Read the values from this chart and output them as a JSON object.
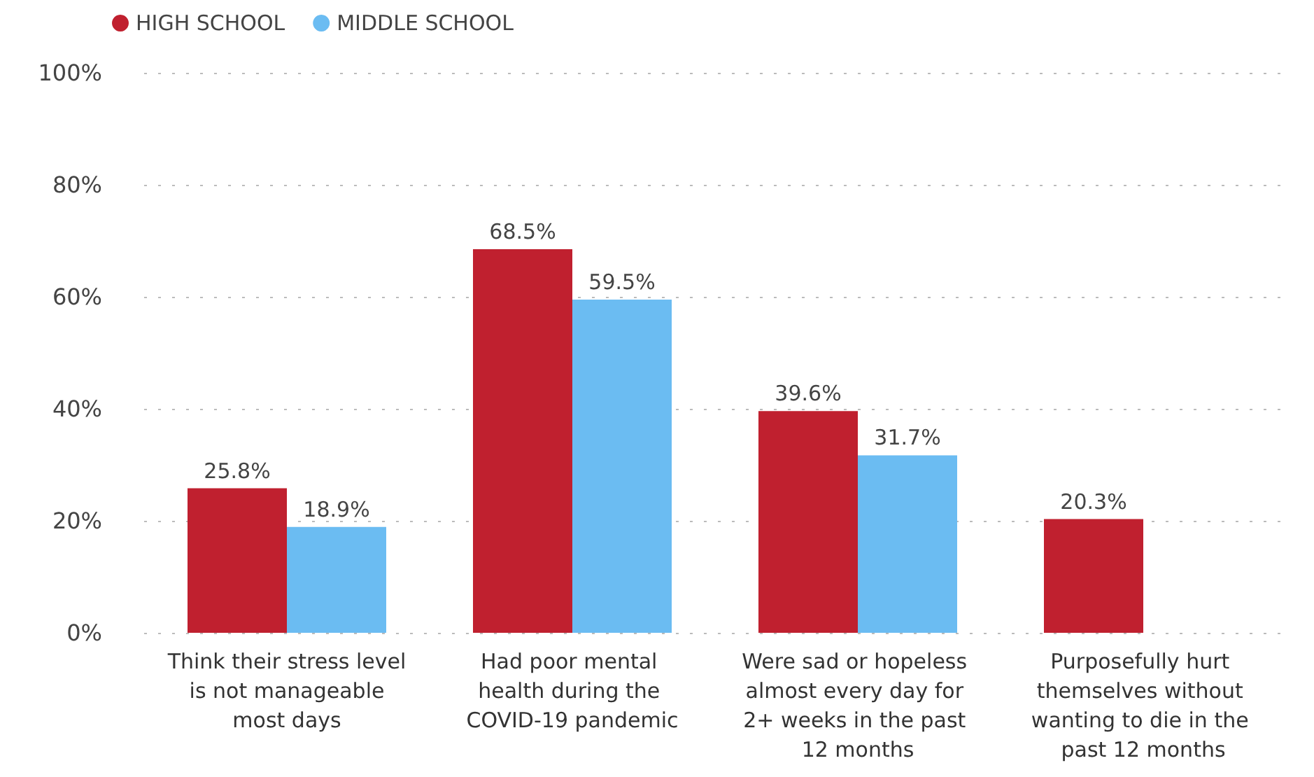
{
  "chart_data": {
    "type": "bar",
    "categories": [
      "Think their stress level is not manageable most days",
      "Had poor mental health during the COVID-19 pandemic",
      "Were sad or hopeless almost every day for 2+ weeks in the past 12 months",
      "Purposefully hurt themselves without wanting to die in the past 12 months"
    ],
    "series": [
      {
        "name": "HIGH SCHOOL",
        "color": "#c0202f",
        "values": [
          25.8,
          68.5,
          39.6,
          20.3
        ],
        "value_labels": [
          "25.8%",
          "68.5%",
          "39.6%",
          "20.3%"
        ]
      },
      {
        "name": "MIDDLE SCHOOL",
        "color": "#6bbcf2",
        "values": [
          18.9,
          59.5,
          31.7,
          null
        ],
        "value_labels": [
          "18.9%",
          "59.5%",
          "31.7%",
          null
        ]
      }
    ],
    "ylim": [
      0,
      100
    ],
    "yticks": [
      {
        "value": 0,
        "label": "0%"
      },
      {
        "value": 20,
        "label": "20%"
      },
      {
        "value": 40,
        "label": "40%"
      },
      {
        "value": 60,
        "label": "60%"
      },
      {
        "value": 80,
        "label": "80%"
      },
      {
        "value": 100,
        "label": "100%"
      }
    ],
    "grid": "y",
    "legend": "top left"
  }
}
